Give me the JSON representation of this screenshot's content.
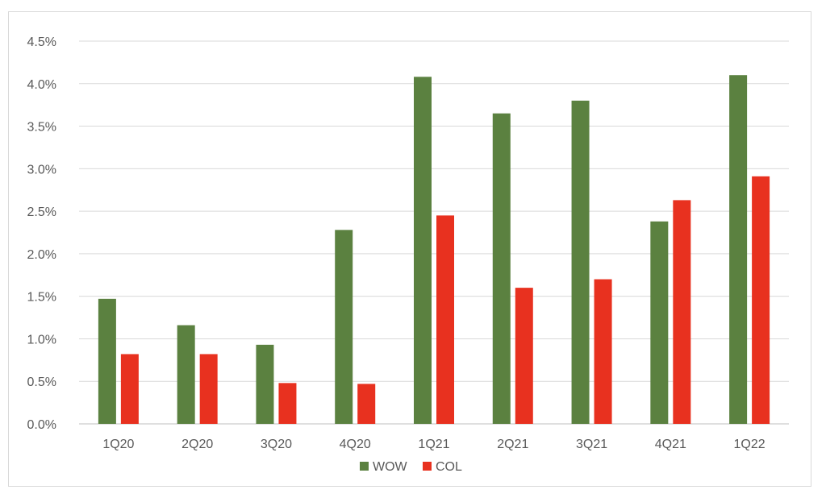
{
  "chart_data": {
    "type": "bar",
    "title": "",
    "xlabel": "",
    "ylabel": "",
    "categories": [
      "1Q20",
      "2Q20",
      "3Q20",
      "4Q20",
      "1Q21",
      "2Q21",
      "3Q21",
      "4Q21",
      "1Q22"
    ],
    "series": [
      {
        "name": "WOW",
        "color": "#5b8140",
        "values": [
          1.47,
          1.16,
          0.93,
          2.28,
          4.08,
          3.65,
          3.8,
          2.38,
          4.1
        ]
      },
      {
        "name": "COL",
        "color": "#e8311f",
        "values": [
          0.82,
          0.82,
          0.48,
          0.47,
          2.45,
          1.6,
          1.7,
          2.63,
          2.91
        ]
      }
    ],
    "ylim": [
      0,
      4.5
    ],
    "yticks": [
      "0.0%",
      "0.5%",
      "1.0%",
      "1.5%",
      "2.0%",
      "2.5%",
      "3.0%",
      "3.5%",
      "4.0%",
      "4.5%"
    ],
    "grid": true,
    "legend_position": "bottom"
  }
}
